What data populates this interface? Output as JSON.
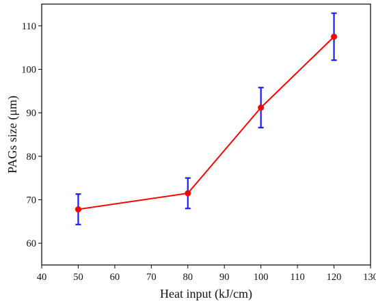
{
  "chart_data": {
    "type": "line",
    "title": "",
    "xlabel": "Heat input (kJ/cm)",
    "ylabel": "PAGs size (μm)",
    "xlim": [
      40,
      130
    ],
    "ylim": [
      55,
      115
    ],
    "xticks": [
      40,
      50,
      60,
      70,
      80,
      90,
      100,
      110,
      120,
      130
    ],
    "yticks": [
      60,
      70,
      80,
      90,
      100,
      110
    ],
    "grid": false,
    "legend": "none",
    "series": [
      {
        "x": [
          50,
          80,
          100,
          120
        ],
        "y": [
          67.8,
          71.5,
          91.2,
          107.5
        ],
        "error": [
          3.5,
          3.5,
          4.6,
          5.4
        ],
        "line_color": "#ff0000",
        "marker_color": "#ff0000",
        "error_bar_color": "#1a1aff"
      }
    ]
  }
}
